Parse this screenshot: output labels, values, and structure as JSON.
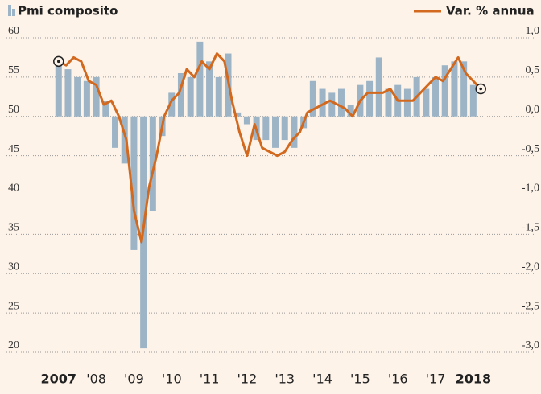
{
  "chart_data": {
    "type": "bar_line",
    "xlim": [
      2006.3,
      2018.9
    ],
    "xticks": [
      2007,
      {
        "value": 2008,
        "label": "'08"
      },
      {
        "value": 2009,
        "label": "'09"
      },
      {
        "value": 2010,
        "label": "'10"
      },
      {
        "value": 2011,
        "label": "'11"
      },
      {
        "value": 2012,
        "label": "'12"
      },
      {
        "value": 2013,
        "label": "'13"
      },
      {
        "value": 2014,
        "label": "'14"
      },
      {
        "value": 2015,
        "label": "'15"
      },
      {
        "value": 2016,
        "label": "'16"
      },
      {
        "value": 2017,
        "label": "'17"
      },
      2018
    ],
    "ylim": [
      20,
      60
    ],
    "yticks": [
      20,
      25,
      30,
      35,
      40,
      45,
      50,
      55,
      60
    ],
    "y2lim": [
      -3,
      1
    ],
    "y2ticks": [
      {
        "value": -3,
        "label": "-3,0"
      },
      {
        "value": -2.5,
        "label": "-2,5"
      },
      {
        "value": -2,
        "label": "-2,0"
      },
      {
        "value": -1.5,
        "label": "-1,5"
      },
      {
        "value": -1,
        "label": "-1,0"
      },
      {
        "value": -0.5,
        "label": "-0,5"
      },
      {
        "value": 0,
        "label": "0,0"
      },
      {
        "value": 0.5,
        "label": "0,5"
      },
      {
        "value": 1,
        "label": "1,0"
      }
    ],
    "bar_base": 50,
    "grid": true,
    "series": [
      {
        "name": "Pmi composito",
        "type": "bar",
        "color": "#9cb4c6",
        "x": [
          2007,
          2007.25,
          2007.5,
          2007.75,
          2008,
          2008.25,
          2008.5,
          2008.75,
          2009,
          2009.25,
          2009.5,
          2009.75,
          2010,
          2010.25,
          2010.5,
          2010.75,
          2011,
          2011.25,
          2011.5,
          2011.75,
          2012,
          2012.25,
          2012.5,
          2012.75,
          2013,
          2013.25,
          2013.5,
          2013.75,
          2014,
          2014.25,
          2014.5,
          2014.75,
          2015,
          2015.25,
          2015.5,
          2015.75,
          2016,
          2016.25,
          2016.5,
          2016.75,
          2017,
          2017.25,
          2017.5,
          2017.75,
          2018
        ],
        "values": [
          57.5,
          56,
          55,
          54.5,
          55,
          52,
          46,
          44,
          33,
          20.5,
          38,
          47.5,
          53,
          55.5,
          55,
          59.5,
          57,
          55,
          58,
          50.5,
          49,
          47,
          47,
          46,
          47,
          46,
          48.5,
          54.5,
          53.5,
          53,
          53.5,
          51.5,
          54,
          54.5,
          57.5,
          53.5,
          54,
          53.5,
          55,
          53.5,
          55,
          56.5,
          57,
          57,
          54
        ]
      },
      {
        "name": "Var. % annua",
        "type": "line",
        "axis": "y2",
        "color": "#d2691e",
        "x": [
          2007,
          2007.2,
          2007.4,
          2007.6,
          2007.8,
          2008,
          2008.2,
          2008.4,
          2008.6,
          2008.8,
          2009,
          2009.2,
          2009.4,
          2009.6,
          2009.8,
          2010,
          2010.2,
          2010.4,
          2010.6,
          2010.8,
          2011,
          2011.2,
          2011.4,
          2011.6,
          2011.8,
          2012,
          2012.2,
          2012.4,
          2012.6,
          2012.8,
          2013,
          2013.2,
          2013.4,
          2013.6,
          2013.8,
          2014,
          2014.2,
          2014.4,
          2014.6,
          2014.8,
          2015,
          2015.2,
          2015.4,
          2015.6,
          2015.8,
          2016,
          2016.2,
          2016.4,
          2016.6,
          2016.8,
          2017,
          2017.2,
          2017.4,
          2017.6,
          2017.8,
          2018,
          2018.2
        ],
        "values": [
          0.7,
          0.65,
          0.75,
          0.7,
          0.45,
          0.4,
          0.15,
          0.2,
          0.0,
          -0.3,
          -1.2,
          -1.6,
          -0.9,
          -0.5,
          0.0,
          0.2,
          0.3,
          0.6,
          0.5,
          0.7,
          0.6,
          0.8,
          0.7,
          0.2,
          -0.2,
          -0.5,
          -0.1,
          -0.4,
          -0.45,
          -0.5,
          -0.45,
          -0.3,
          -0.2,
          0.05,
          0.1,
          0.15,
          0.2,
          0.15,
          0.1,
          0.0,
          0.2,
          0.3,
          0.3,
          0.3,
          0.35,
          0.2,
          0.2,
          0.2,
          0.3,
          0.4,
          0.5,
          0.45,
          0.6,
          0.75,
          0.55,
          0.45,
          0.35
        ]
      }
    ]
  }
}
